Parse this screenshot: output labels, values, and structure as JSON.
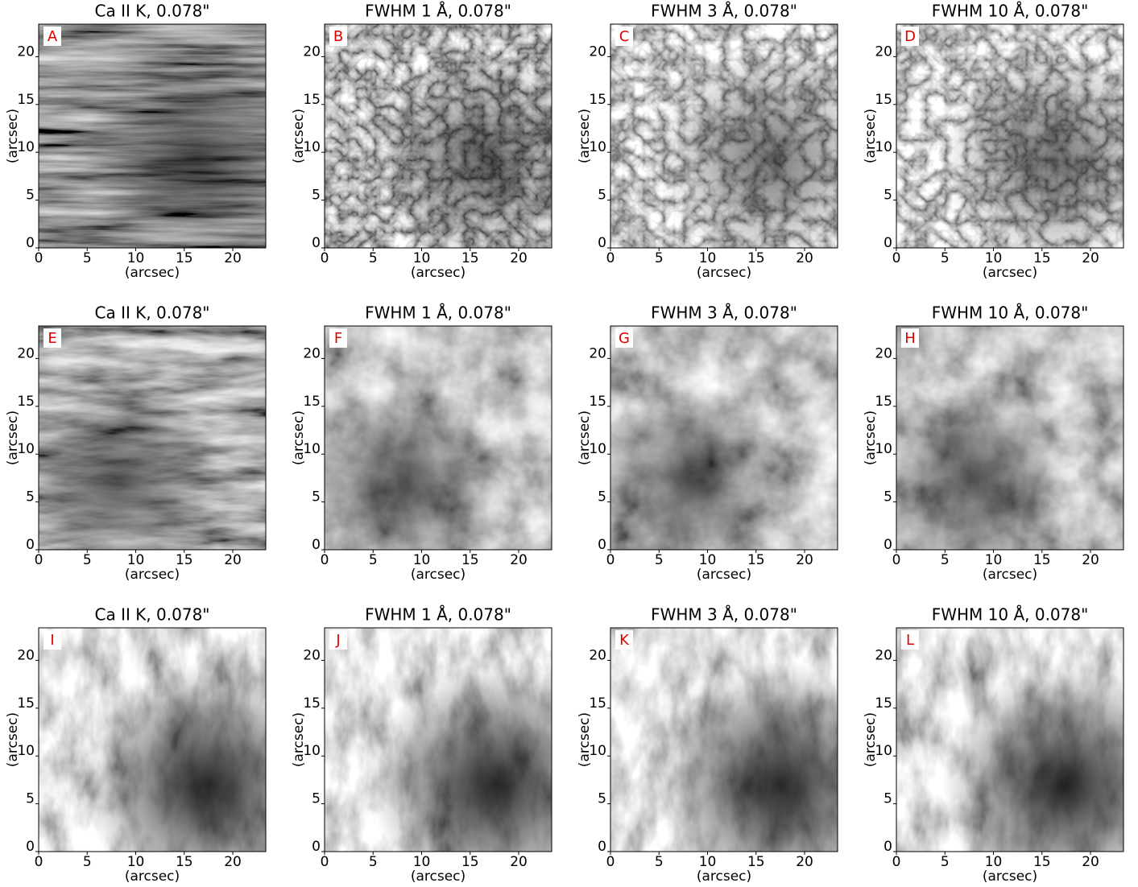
{
  "chart_data": [
    {
      "type": "image",
      "title": "Ca II K, 0.078\"",
      "label": "A",
      "xlabel": "(arcsec)",
      "ylabel": "(arcsec)",
      "xlim": [
        0,
        23.4
      ],
      "ylim": [
        0,
        23.4
      ],
      "xticks": [
        0,
        5,
        10,
        15,
        20
      ],
      "yticks": [
        0,
        5,
        10,
        15,
        20
      ]
    },
    {
      "type": "image",
      "title": "FWHM 1 Å, 0.078\"",
      "label": "B",
      "xlabel": "(arcsec)",
      "ylabel": "(arcsec)",
      "xlim": [
        0,
        23.4
      ],
      "ylim": [
        0,
        23.4
      ],
      "xticks": [
        0,
        5,
        10,
        15,
        20
      ],
      "yticks": [
        0,
        5,
        10,
        15,
        20
      ]
    },
    {
      "type": "image",
      "title": "FWHM 3 Å, 0.078\"",
      "label": "C",
      "xlabel": "(arcsec)",
      "ylabel": "(arcsec)",
      "xlim": [
        0,
        23.4
      ],
      "ylim": [
        0,
        23.4
      ],
      "xticks": [
        0,
        5,
        10,
        15,
        20
      ],
      "yticks": [
        0,
        5,
        10,
        15,
        20
      ]
    },
    {
      "type": "image",
      "title": "FWHM 10 Å, 0.078\"",
      "label": "D",
      "xlabel": "(arcsec)",
      "ylabel": "(arcsec)",
      "xlim": [
        0,
        23.4
      ],
      "ylim": [
        0,
        23.4
      ],
      "xticks": [
        0,
        5,
        10,
        15,
        20
      ],
      "yticks": [
        0,
        5,
        10,
        15,
        20
      ]
    },
    {
      "type": "image",
      "title": "Ca II K, 0.078\"",
      "label": "E",
      "xlabel": "(arcsec)",
      "ylabel": "(arcsec)",
      "xlim": [
        0,
        23.4
      ],
      "ylim": [
        0,
        23.4
      ],
      "xticks": [
        0,
        5,
        10,
        15,
        20
      ],
      "yticks": [
        0,
        5,
        10,
        15,
        20
      ]
    },
    {
      "type": "image",
      "title": "FWHM 1 Å, 0.078\"",
      "label": "F",
      "xlabel": "(arcsec)",
      "ylabel": "(arcsec)",
      "xlim": [
        0,
        23.4
      ],
      "ylim": [
        0,
        23.4
      ],
      "xticks": [
        0,
        5,
        10,
        15,
        20
      ],
      "yticks": [
        0,
        5,
        10,
        15,
        20
      ]
    },
    {
      "type": "image",
      "title": "FWHM 3 Å, 0.078\"",
      "label": "G",
      "xlabel": "(arcsec)",
      "ylabel": "(arcsec)",
      "xlim": [
        0,
        23.4
      ],
      "ylim": [
        0,
        23.4
      ],
      "xticks": [
        0,
        5,
        10,
        15,
        20
      ],
      "yticks": [
        0,
        5,
        10,
        15,
        20
      ]
    },
    {
      "type": "image",
      "title": "FWHM 10 Å, 0.078\"",
      "label": "H",
      "xlabel": "(arcsec)",
      "ylabel": "(arcsec)",
      "xlim": [
        0,
        23.4
      ],
      "ylim": [
        0,
        23.4
      ],
      "xticks": [
        0,
        5,
        10,
        15,
        20
      ],
      "yticks": [
        0,
        5,
        10,
        15,
        20
      ]
    },
    {
      "type": "image",
      "title": "Ca II K, 0.078\"",
      "label": "I",
      "xlabel": "(arcsec)",
      "ylabel": "(arcsec)",
      "xlim": [
        0,
        23.4
      ],
      "ylim": [
        0,
        23.4
      ],
      "xticks": [
        0,
        5,
        10,
        15,
        20
      ],
      "yticks": [
        0,
        5,
        10,
        15,
        20
      ]
    },
    {
      "type": "image",
      "title": "FWHM 1 Å, 0.078\"",
      "label": "J",
      "xlabel": "(arcsec)",
      "ylabel": "(arcsec)",
      "xlim": [
        0,
        23.4
      ],
      "ylim": [
        0,
        23.4
      ],
      "xticks": [
        0,
        5,
        10,
        15,
        20
      ],
      "yticks": [
        0,
        5,
        10,
        15,
        20
      ]
    },
    {
      "type": "image",
      "title": "FWHM 3 Å, 0.078\"",
      "label": "K",
      "xlabel": "(arcsec)",
      "ylabel": "(arcsec)",
      "xlim": [
        0,
        23.4
      ],
      "ylim": [
        0,
        23.4
      ],
      "xticks": [
        0,
        5,
        10,
        15,
        20
      ],
      "yticks": [
        0,
        5,
        10,
        15,
        20
      ]
    },
    {
      "type": "image",
      "title": "FWHM 10 Å, 0.078\"",
      "label": "L",
      "xlabel": "(arcsec)",
      "ylabel": "(arcsec)",
      "xlim": [
        0,
        23.4
      ],
      "ylim": [
        0,
        23.4
      ],
      "xticks": [
        0,
        5,
        10,
        15,
        20
      ],
      "yticks": [
        0,
        5,
        10,
        15,
        20
      ]
    }
  ]
}
